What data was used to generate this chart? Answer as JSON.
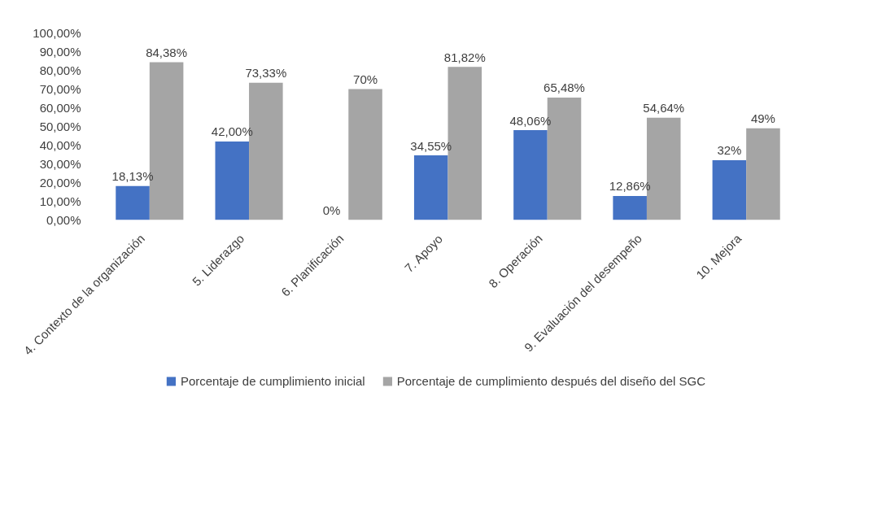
{
  "chart_data": {
    "type": "bar",
    "categories": [
      "4.    Contexto de la organización",
      "5.    Liderazgo",
      "6.    Planificación",
      "7.    Apoyo",
      "8.    Operación",
      "9.    Evaluación del desempeño",
      "10.    Mejora"
    ],
    "series": [
      {
        "name": "Porcentaje de cumplimiento inicial",
        "color": "#4472c4",
        "values": [
          18.13,
          42,
          0,
          34.55,
          48.06,
          12.86,
          32
        ],
        "value_labels": [
          "18,13%",
          "42,00%",
          "0%",
          "34,55%",
          "48,06%",
          "12,86%",
          "32%"
        ]
      },
      {
        "name": "Porcentaje de cumplimiento después del diseño del SGC",
        "color": "#a5a5a5",
        "values": [
          84.38,
          73.33,
          70,
          81.82,
          65.48,
          54.64,
          49
        ],
        "value_labels": [
          "84,38%",
          "73,33%",
          "70%",
          "81,82%",
          "65,48%",
          "54,64%",
          "49%"
        ]
      }
    ],
    "ylim": [
      0,
      100
    ],
    "yticks": [
      {
        "value": 0,
        "label": "0,00%"
      },
      {
        "value": 10,
        "label": "10,00%"
      },
      {
        "value": 20,
        "label": "20,00%"
      },
      {
        "value": 30,
        "label": "30,00%"
      },
      {
        "value": 40,
        "label": "40,00%"
      },
      {
        "value": 50,
        "label": "50,00%"
      },
      {
        "value": 60,
        "label": "60,00%"
      },
      {
        "value": 70,
        "label": "70,00%"
      },
      {
        "value": 80,
        "label": "80,00%"
      },
      {
        "value": 90,
        "label": "90,00%"
      },
      {
        "value": 100,
        "label": "100,00%"
      }
    ],
    "grid": false,
    "legend": "bottom"
  }
}
